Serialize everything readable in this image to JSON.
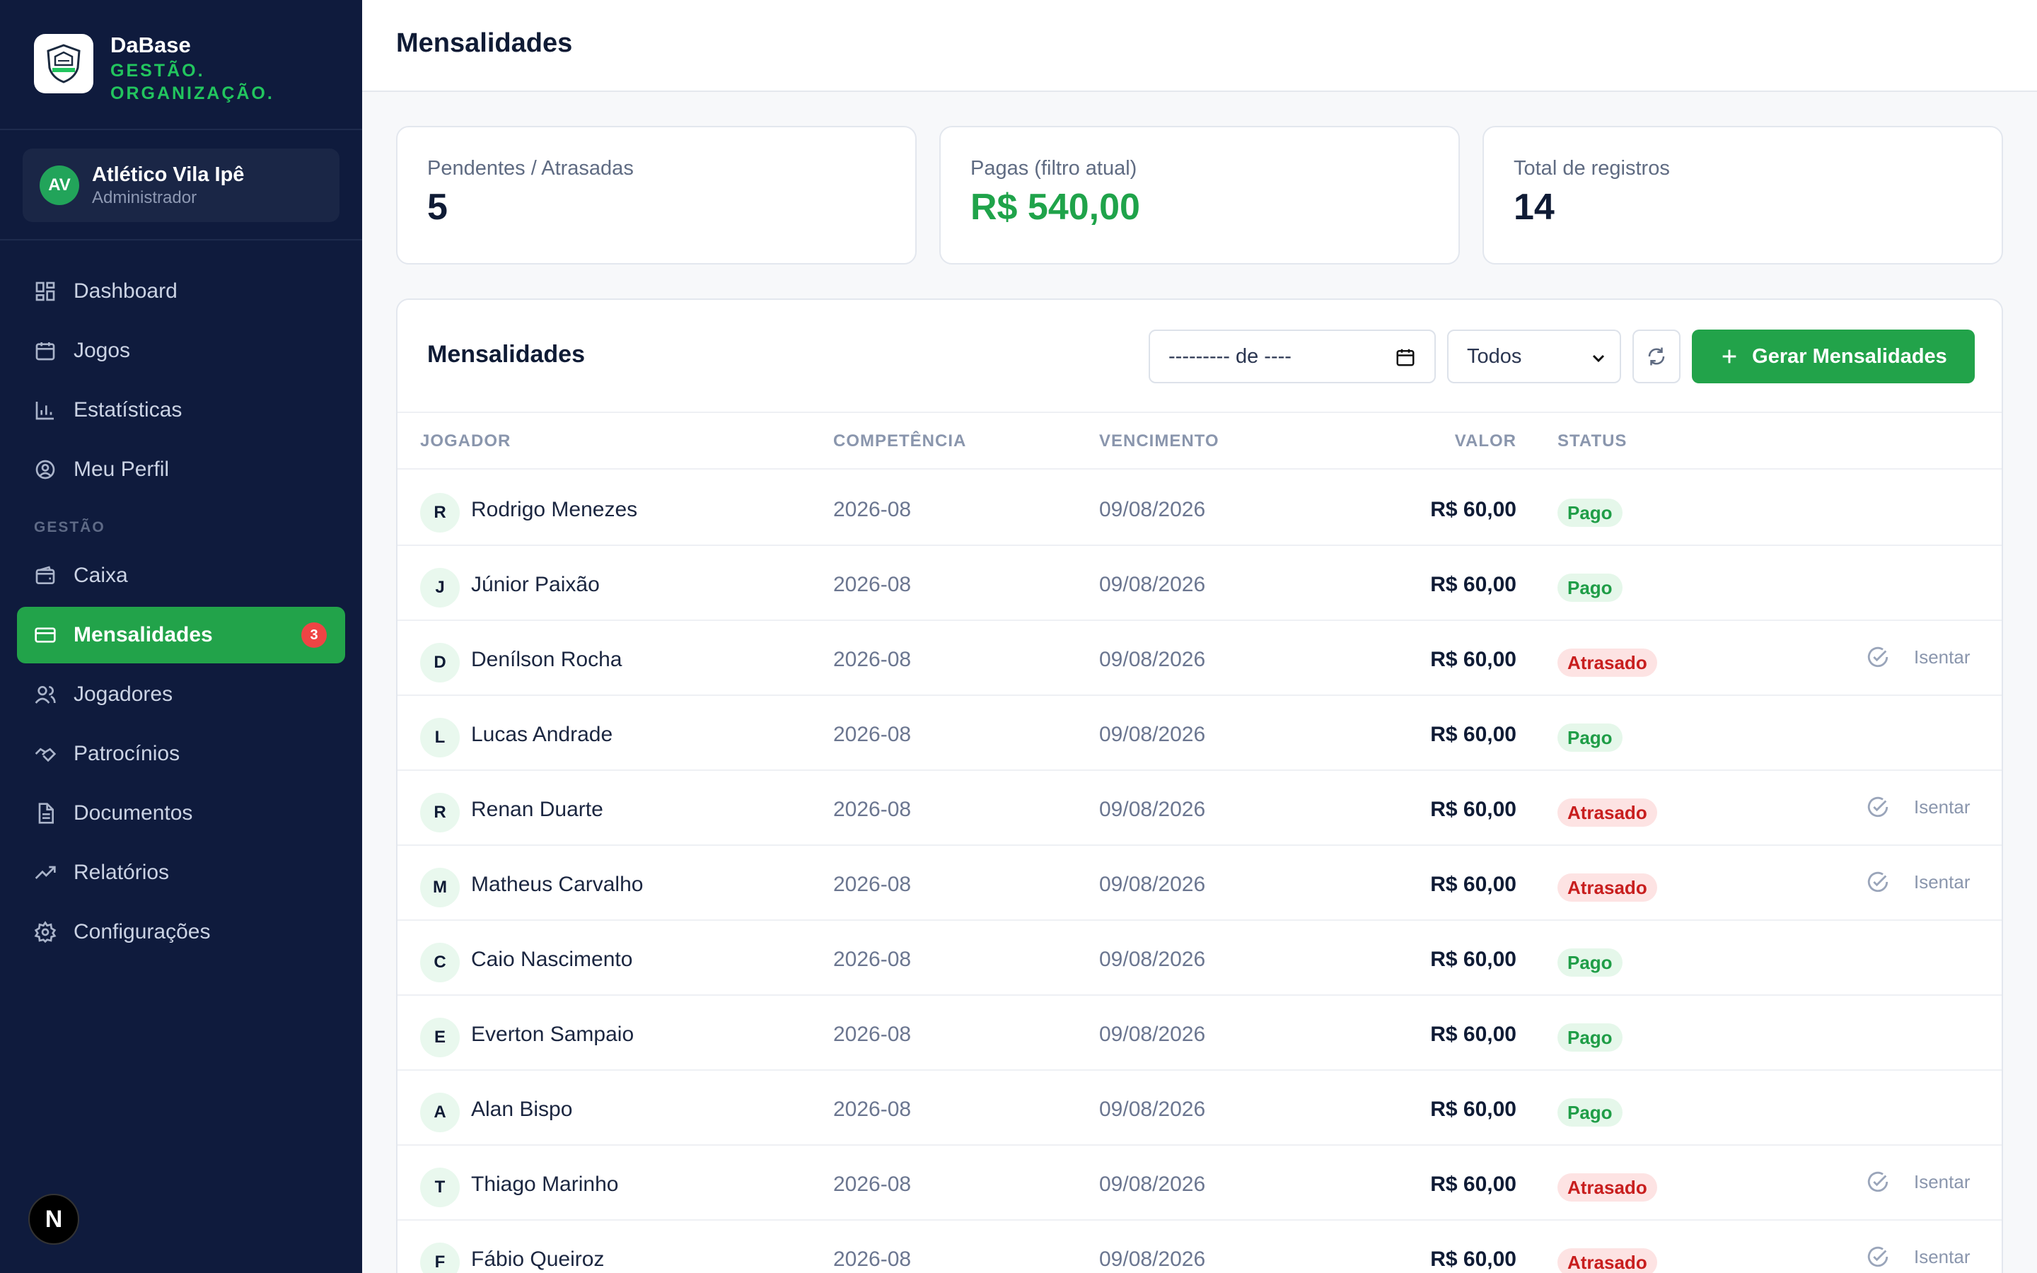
{
  "brand": {
    "name": "DaBase",
    "slogan_1": "GESTÃO.",
    "slogan_2": "ORGANIZAÇÃO."
  },
  "user": {
    "initials": "AV",
    "name": "Atlético Vila Ipê",
    "role": "Administrador"
  },
  "nav": {
    "items": [
      {
        "label": "Dashboard",
        "icon": "dashboard-icon"
      },
      {
        "label": "Jogos",
        "icon": "calendar-icon"
      },
      {
        "label": "Estatísticas",
        "icon": "bar-chart-icon"
      },
      {
        "label": "Meu Perfil",
        "icon": "user-circle-icon"
      }
    ],
    "section_label": "GESTÃO",
    "gestao_items": [
      {
        "label": "Caixa",
        "icon": "wallet-icon"
      },
      {
        "label": "Mensalidades",
        "icon": "credit-card-icon",
        "badge": "3",
        "active": true
      },
      {
        "label": "Jogadores",
        "icon": "users-icon"
      },
      {
        "label": "Patrocínios",
        "icon": "handshake-icon"
      },
      {
        "label": "Documentos",
        "icon": "document-icon"
      },
      {
        "label": "Relatórios",
        "icon": "trending-up-icon"
      },
      {
        "label": "Configurações",
        "icon": "gear-icon"
      }
    ]
  },
  "dev_badge": "N",
  "header": {
    "title": "Mensalidades"
  },
  "stats": [
    {
      "label": "Pendentes / Atrasadas",
      "value": "5"
    },
    {
      "label": "Pagas (filtro atual)",
      "value": "R$ 540,00"
    },
    {
      "label": "Total de registros",
      "value": "14"
    }
  ],
  "panel": {
    "title": "Mensalidades",
    "month_placeholder": "--------- de ----",
    "status_filter": "Todos",
    "generate_label": "Gerar Mensalidades"
  },
  "table": {
    "columns": [
      "JOGADOR",
      "COMPETÊNCIA",
      "VENCIMENTO",
      "VALOR",
      "STATUS"
    ],
    "exempt_label": "Isentar",
    "rows": [
      {
        "initial": "R",
        "name": "Rodrigo Menezes",
        "competencia": "2026-08",
        "vencimento": "09/08/2026",
        "valor": "R$ 60,00",
        "status": "Pago"
      },
      {
        "initial": "J",
        "name": "Júnior Paixão",
        "competencia": "2026-08",
        "vencimento": "09/08/2026",
        "valor": "R$ 60,00",
        "status": "Pago"
      },
      {
        "initial": "D",
        "name": "Denílson Rocha",
        "competencia": "2026-08",
        "vencimento": "09/08/2026",
        "valor": "R$ 60,00",
        "status": "Atrasado"
      },
      {
        "initial": "L",
        "name": "Lucas Andrade",
        "competencia": "2026-08",
        "vencimento": "09/08/2026",
        "valor": "R$ 60,00",
        "status": "Pago"
      },
      {
        "initial": "R",
        "name": "Renan Duarte",
        "competencia": "2026-08",
        "vencimento": "09/08/2026",
        "valor": "R$ 60,00",
        "status": "Atrasado"
      },
      {
        "initial": "M",
        "name": "Matheus Carvalho",
        "competencia": "2026-08",
        "vencimento": "09/08/2026",
        "valor": "R$ 60,00",
        "status": "Atrasado"
      },
      {
        "initial": "C",
        "name": "Caio Nascimento",
        "competencia": "2026-08",
        "vencimento": "09/08/2026",
        "valor": "R$ 60,00",
        "status": "Pago"
      },
      {
        "initial": "E",
        "name": "Everton Sampaio",
        "competencia": "2026-08",
        "vencimento": "09/08/2026",
        "valor": "R$ 60,00",
        "status": "Pago"
      },
      {
        "initial": "A",
        "name": "Alan Bispo",
        "competencia": "2026-08",
        "vencimento": "09/08/2026",
        "valor": "R$ 60,00",
        "status": "Pago"
      },
      {
        "initial": "T",
        "name": "Thiago Marinho",
        "competencia": "2026-08",
        "vencimento": "09/08/2026",
        "valor": "R$ 60,00",
        "status": "Atrasado"
      },
      {
        "initial": "F",
        "name": "Fábio Queiroz",
        "competencia": "2026-08",
        "vencimento": "09/08/2026",
        "valor": "R$ 60,00",
        "status": "Atrasado"
      }
    ]
  },
  "colors": {
    "sidebar_bg": "#0f1b3d",
    "accent_green": "#22a34a",
    "danger": "#c81e1e"
  }
}
